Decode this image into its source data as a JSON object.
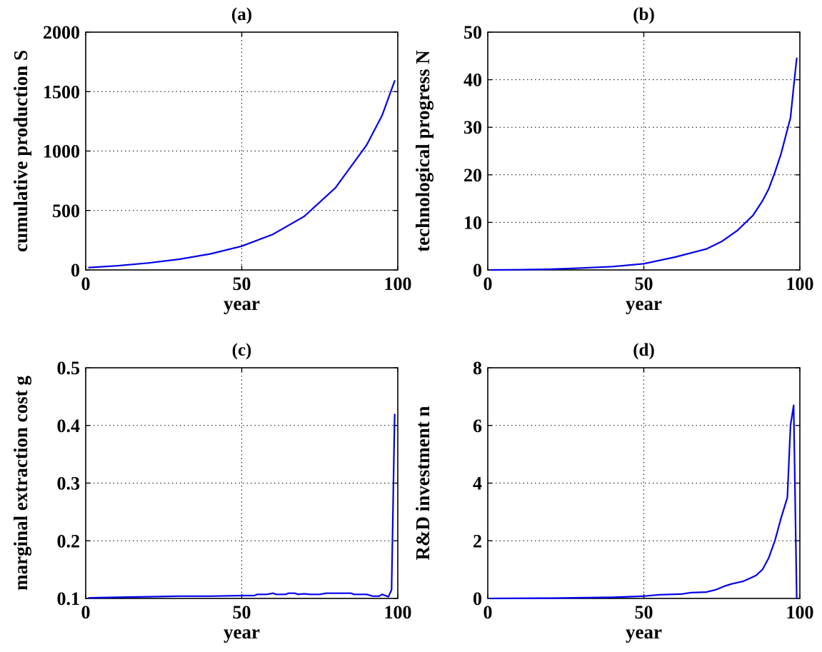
{
  "colors": {
    "series": "#0000ee",
    "axes": "#000000",
    "background": "#ffffff"
  },
  "chart_data": [
    {
      "type": "line",
      "title": "(a)",
      "xlabel": "year",
      "ylabel": "cumulative production S",
      "xlim": [
        0,
        100
      ],
      "ylim": [
        0,
        2000
      ],
      "xticks": [
        0,
        50,
        100
      ],
      "yticks": [
        0,
        500,
        1000,
        1500,
        2000
      ],
      "grid": true,
      "series": [
        {
          "x": [
            1,
            10,
            20,
            30,
            40,
            50,
            60,
            70,
            80,
            90,
            95,
            99
          ],
          "y": [
            20,
            35,
            58,
            90,
            135,
            200,
            300,
            450,
            690,
            1050,
            1300,
            1590
          ]
        }
      ]
    },
    {
      "type": "line",
      "title": "(b)",
      "xlabel": "year",
      "ylabel": "technological progress N",
      "xlim": [
        0,
        100
      ],
      "ylim": [
        0,
        50
      ],
      "xticks": [
        0,
        50,
        100
      ],
      "yticks": [
        0,
        10,
        20,
        30,
        40,
        50
      ],
      "grid": true,
      "series": [
        {
          "x": [
            1,
            10,
            20,
            30,
            40,
            50,
            60,
            70,
            75,
            80,
            85,
            88,
            90,
            92,
            94,
            96,
            97,
            98,
            99
          ],
          "y": [
            0,
            0.05,
            0.15,
            0.4,
            0.7,
            1.3,
            2.7,
            4.4,
            6,
            8.3,
            11.5,
            14.5,
            17,
            20.5,
            24.5,
            29.5,
            32,
            38.5,
            44.5
          ]
        }
      ]
    },
    {
      "type": "line",
      "title": "(c)",
      "xlabel": "year",
      "ylabel": "marginal extraction cost g",
      "xlim": [
        0,
        100
      ],
      "ylim": [
        0.1,
        0.5
      ],
      "xticks": [
        0,
        50,
        100
      ],
      "yticks": [
        0.1,
        0.2,
        0.3,
        0.4,
        0.5
      ],
      "grid": true,
      "series": [
        {
          "x": [
            1,
            10,
            20,
            30,
            40,
            50,
            54,
            55,
            58,
            60,
            61,
            64,
            65,
            67,
            68,
            70,
            72,
            75,
            77,
            80,
            85,
            86,
            90,
            92,
            94,
            95,
            97,
            98,
            99
          ],
          "y": [
            0.101,
            0.102,
            0.103,
            0.104,
            0.104,
            0.105,
            0.105,
            0.107,
            0.107,
            0.109,
            0.107,
            0.107,
            0.109,
            0.109,
            0.107,
            0.108,
            0.107,
            0.107,
            0.109,
            0.109,
            0.109,
            0.107,
            0.107,
            0.104,
            0.104,
            0.107,
            0.103,
            0.115,
            0.419
          ]
        }
      ]
    },
    {
      "type": "line",
      "title": "(d)",
      "xlabel": "year",
      "ylabel": "R&D investment n",
      "xlim": [
        0,
        100
      ],
      "ylim": [
        0,
        8
      ],
      "xticks": [
        0,
        50,
        100
      ],
      "yticks": [
        0,
        2,
        4,
        6,
        8
      ],
      "grid": true,
      "series": [
        {
          "x": [
            1,
            20,
            40,
            50,
            55,
            62,
            65,
            70,
            73,
            76,
            78,
            82,
            86,
            88,
            90,
            92,
            94,
            96,
            97,
            98,
            99
          ],
          "y": [
            0,
            0.01,
            0.04,
            0.08,
            0.13,
            0.15,
            0.2,
            0.22,
            0.3,
            0.43,
            0.5,
            0.6,
            0.8,
            1.0,
            1.4,
            2.0,
            2.8,
            3.5,
            6.0,
            6.7,
            0
          ]
        }
      ]
    }
  ]
}
